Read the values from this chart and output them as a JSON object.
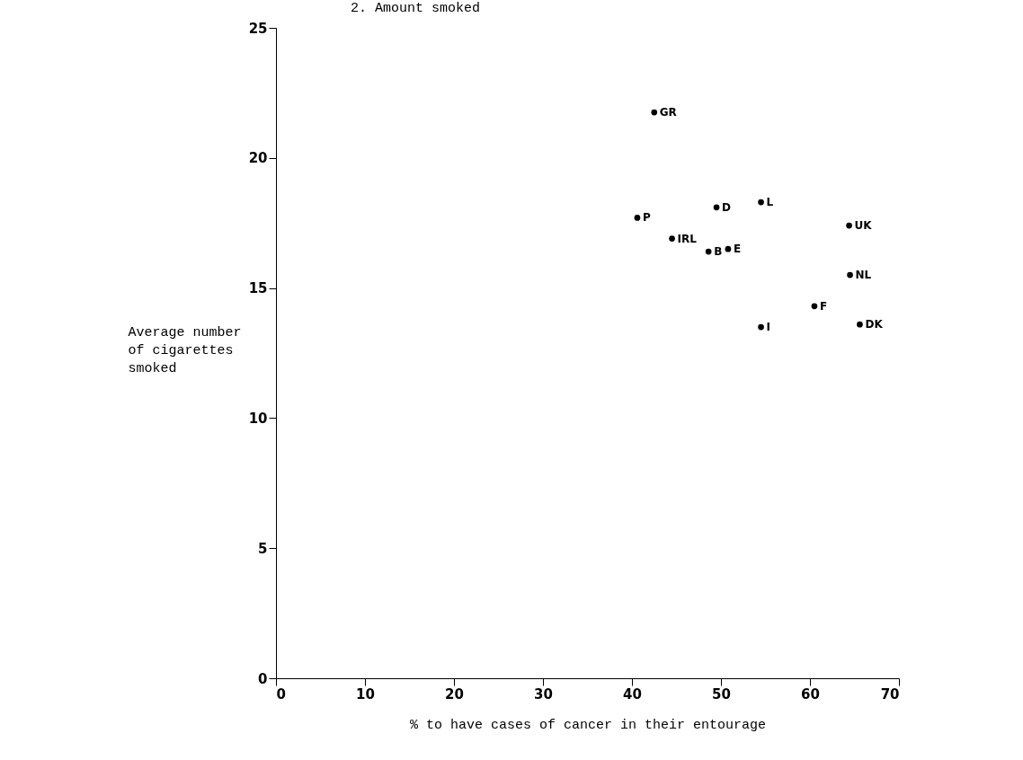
{
  "chart_data": {
    "type": "scatter",
    "title": "2. Amount smoked",
    "xlabel": "% to have cases of cancer in their entourage",
    "ylabel": "Average number of cigarettes smoked",
    "xlim": [
      0,
      70
    ],
    "xticks": [
      0,
      10,
      20,
      30,
      40,
      50,
      60,
      70
    ],
    "ylim": [
      0,
      25
    ],
    "yticks": [
      0,
      5,
      10,
      15,
      20,
      25
    ],
    "grid": false,
    "legend": false,
    "marker": "circle",
    "series": [
      {
        "name": "GR",
        "color": "#000000",
        "x": [
          42.5
        ],
        "values": [
          21.75
        ]
      },
      {
        "name": "P",
        "color": "#000000",
        "x": [
          40.6
        ],
        "values": [
          17.7
        ]
      },
      {
        "name": "D",
        "color": "#000000",
        "x": [
          49.5
        ],
        "values": [
          18.1
        ]
      },
      {
        "name": "L",
        "color": "#000000",
        "x": [
          54.5
        ],
        "values": [
          18.3
        ]
      },
      {
        "name": "UK",
        "color": "#000000",
        "x": [
          64.4
        ],
        "values": [
          17.4
        ]
      },
      {
        "name": "IRL",
        "color": "#000000",
        "x": [
          44.5
        ],
        "values": [
          16.9
        ]
      },
      {
        "name": "B",
        "color": "#000000",
        "x": [
          48.6
        ],
        "values": [
          16.4
        ]
      },
      {
        "name": "E",
        "color": "#000000",
        "x": [
          50.8
        ],
        "values": [
          16.5
        ]
      },
      {
        "name": "NL",
        "color": "#000000",
        "x": [
          64.5
        ],
        "values": [
          15.5
        ]
      },
      {
        "name": "F",
        "color": "#000000",
        "x": [
          60.5
        ],
        "values": [
          14.3
        ]
      },
      {
        "name": "I",
        "color": "#000000",
        "x": [
          54.5
        ],
        "values": [
          13.5
        ]
      },
      {
        "name": "DK",
        "color": "#000000",
        "x": [
          65.6
        ],
        "values": [
          13.6
        ]
      }
    ]
  }
}
